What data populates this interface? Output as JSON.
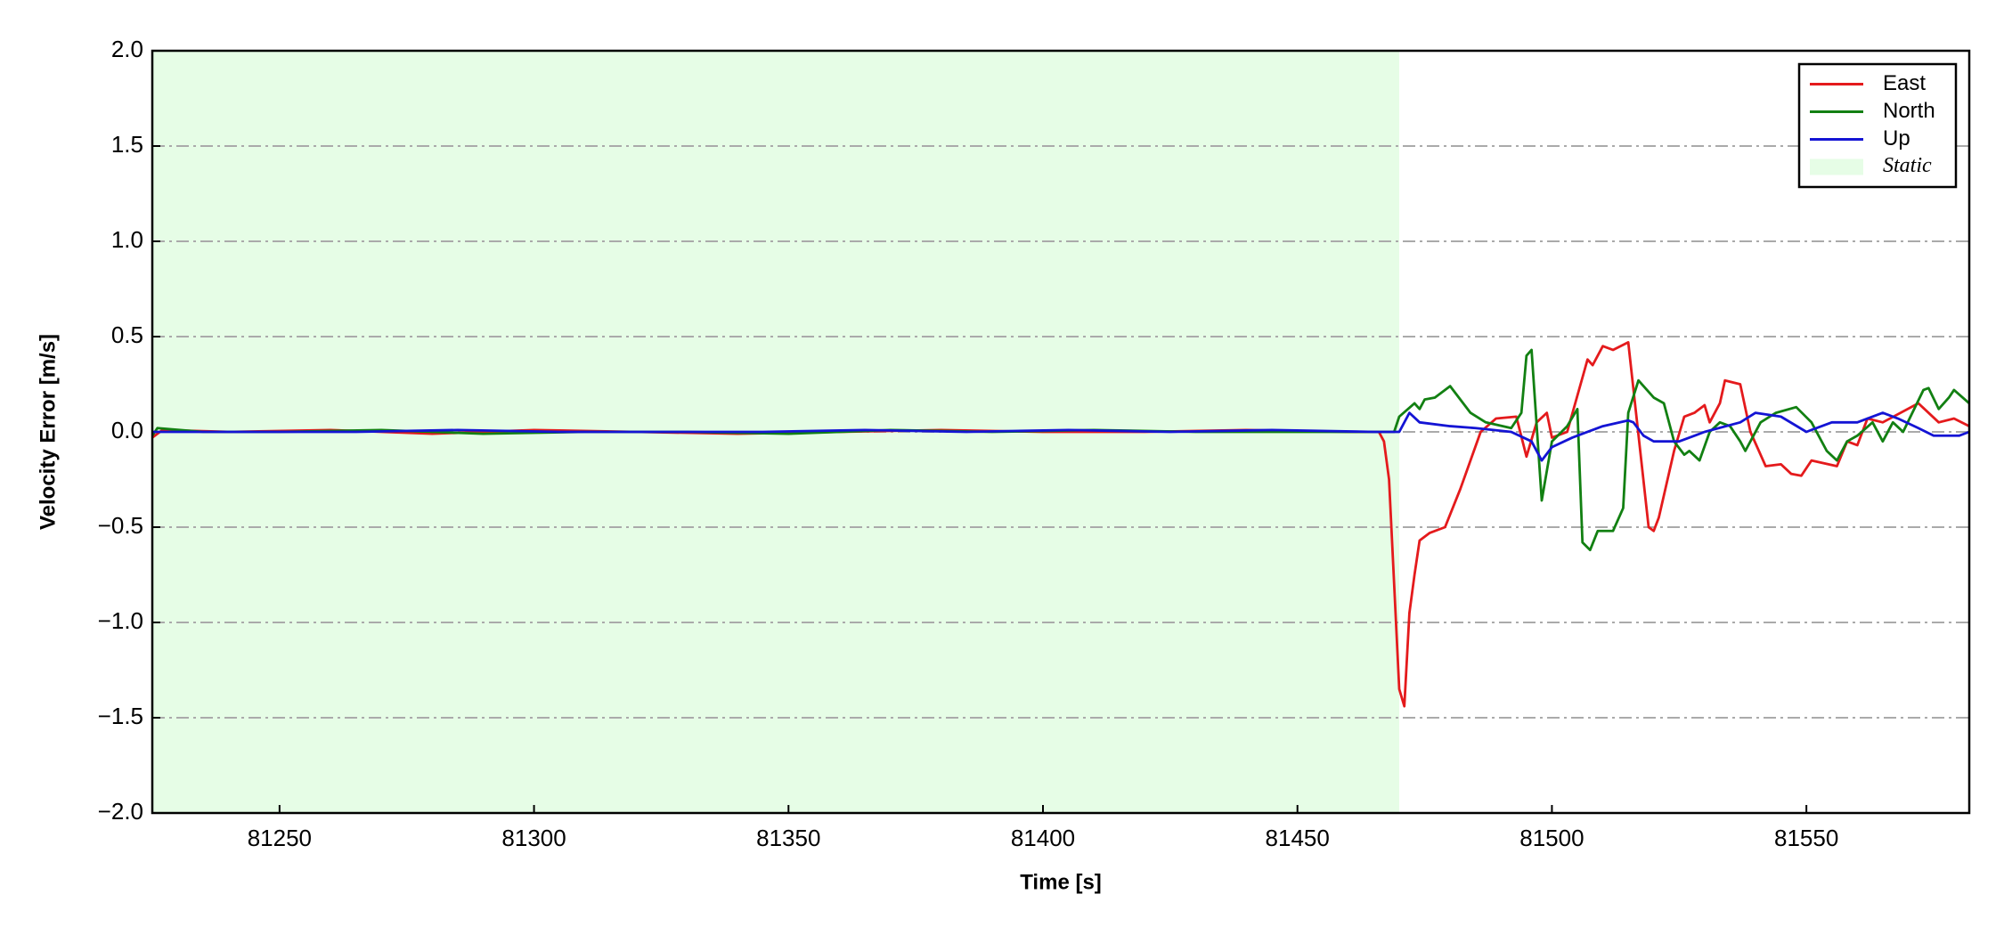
{
  "chart_data": {
    "type": "line",
    "xlabel": "Time [s]",
    "ylabel": "Velocity Error [m/s]",
    "xlim": [
      81225,
      81582
    ],
    "ylim": [
      -2.0,
      2.0
    ],
    "xticks": [
      81250,
      81300,
      81350,
      81400,
      81450,
      81500,
      81550
    ],
    "yticks": [
      {
        "value": -2.0,
        "label": "−2.0"
      },
      {
        "value": -1.5,
        "label": "−1.5"
      },
      {
        "value": -1.0,
        "label": "−1.0"
      },
      {
        "value": -0.5,
        "label": "−0.5"
      },
      {
        "value": 0.0,
        "label": "0.0"
      },
      {
        "value": 0.5,
        "label": "0.5"
      },
      {
        "value": 1.0,
        "label": "1.0"
      },
      {
        "value": 1.5,
        "label": "1.5"
      },
      {
        "value": 2.0,
        "label": "2.0"
      }
    ],
    "grid": true,
    "legend": "upper right",
    "shaded": {
      "name": "Static",
      "color": "#e6fde6",
      "x": [
        81225,
        81470
      ]
    },
    "series": [
      {
        "name": "East",
        "color": "#e41a1c",
        "x": [
          81225,
          81227,
          81240,
          81260,
          81280,
          81300,
          81320,
          81340,
          81360,
          81380,
          81400,
          81420,
          81440,
          81460,
          81466,
          81467,
          81468,
          81469,
          81470,
          81471,
          81472,
          81473,
          81474,
          81476,
          81479,
          81482,
          81486,
          81489,
          81493,
          81495,
          81497,
          81499,
          81500,
          81503,
          81507,
          81508,
          81510,
          81512,
          81515,
          81519,
          81520,
          81521,
          81524,
          81526,
          81528,
          81530,
          81531,
          81533,
          81534,
          81537,
          81539,
          81542,
          81545,
          81547,
          81549,
          81551,
          81556,
          81558,
          81560,
          81562,
          81565,
          81572,
          81576,
          81579,
          81582
        ],
        "values": [
          -0.03,
          0.01,
          0.0,
          0.01,
          -0.01,
          0.01,
          0.0,
          -0.01,
          0.0,
          0.01,
          0.0,
          0.0,
          0.01,
          0.0,
          0.0,
          -0.05,
          -0.25,
          -0.8,
          -1.35,
          -1.44,
          -0.95,
          -0.75,
          -0.57,
          -0.53,
          -0.5,
          -0.3,
          0.0,
          0.07,
          0.08,
          -0.13,
          0.05,
          0.1,
          -0.03,
          0.0,
          0.38,
          0.35,
          0.45,
          0.43,
          0.47,
          -0.5,
          -0.52,
          -0.45,
          -0.1,
          0.08,
          0.1,
          0.14,
          0.05,
          0.15,
          0.27,
          0.25,
          0.0,
          -0.18,
          -0.17,
          -0.22,
          -0.23,
          -0.15,
          -0.18,
          -0.05,
          -0.07,
          0.07,
          0.05,
          0.15,
          0.05,
          0.07,
          0.03
        ]
      },
      {
        "name": "North",
        "color": "#128012",
        "x": [
          81225,
          81226,
          81235,
          81250,
          81270,
          81290,
          81310,
          81330,
          81350,
          81370,
          81390,
          81410,
          81430,
          81450,
          81469,
          81470,
          81473,
          81474,
          81475,
          81477,
          81480,
          81484,
          81487,
          81492,
          81494,
          81495,
          81496,
          81498,
          81500,
          81503,
          81505,
          81506,
          81507.5,
          81509,
          81512,
          81514,
          81515,
          81517,
          81520,
          81522,
          81524,
          81526,
          81527,
          81529,
          81531,
          81533,
          81535,
          81537,
          81538,
          81541,
          81544,
          81548,
          81551,
          81554,
          81556,
          81558,
          81560,
          81563,
          81565,
          81567,
          81569,
          81573,
          81574,
          81576,
          81578,
          81579,
          81582
        ],
        "values": [
          -0.02,
          0.02,
          0.0,
          0.0,
          0.01,
          -0.01,
          0.0,
          0.0,
          -0.01,
          0.01,
          0.0,
          0.01,
          0.0,
          0.0,
          0.0,
          0.08,
          0.15,
          0.12,
          0.17,
          0.18,
          0.24,
          0.1,
          0.05,
          0.02,
          0.1,
          0.4,
          0.43,
          -0.36,
          -0.05,
          0.03,
          0.12,
          -0.58,
          -0.62,
          -0.52,
          -0.52,
          -0.4,
          0.1,
          0.27,
          0.18,
          0.15,
          -0.05,
          -0.12,
          -0.1,
          -0.15,
          0.0,
          0.05,
          0.03,
          -0.05,
          -0.1,
          0.05,
          0.1,
          0.13,
          0.05,
          -0.1,
          -0.15,
          -0.05,
          -0.02,
          0.05,
          -0.05,
          0.05,
          0.0,
          0.22,
          0.23,
          0.12,
          0.18,
          0.22,
          0.15
        ]
      },
      {
        "name": "Up",
        "color": "#1414d4",
        "x": [
          81225,
          81245,
          81265,
          81285,
          81305,
          81325,
          81345,
          81365,
          81385,
          81405,
          81425,
          81445,
          81465,
          81470,
          81472,
          81474,
          81480,
          81485,
          81492,
          81496,
          81498,
          81500,
          81504,
          81510,
          81515,
          81516,
          81518,
          81520,
          81525,
          81530,
          81537,
          81540,
          81545,
          81550,
          81555,
          81560,
          81565,
          81568,
          81572,
          81575,
          81580,
          81582
        ],
        "values": [
          0.0,
          0.0,
          0.0,
          0.01,
          0.0,
          0.0,
          0.0,
          0.01,
          0.0,
          0.01,
          0.0,
          0.01,
          0.0,
          0.0,
          0.1,
          0.05,
          0.03,
          0.02,
          0.0,
          -0.05,
          -0.15,
          -0.08,
          -0.03,
          0.03,
          0.06,
          0.05,
          -0.02,
          -0.05,
          -0.05,
          0.0,
          0.05,
          0.1,
          0.08,
          0.0,
          0.05,
          0.05,
          0.1,
          0.07,
          0.02,
          -0.02,
          -0.02,
          0.0
        ]
      }
    ]
  }
}
